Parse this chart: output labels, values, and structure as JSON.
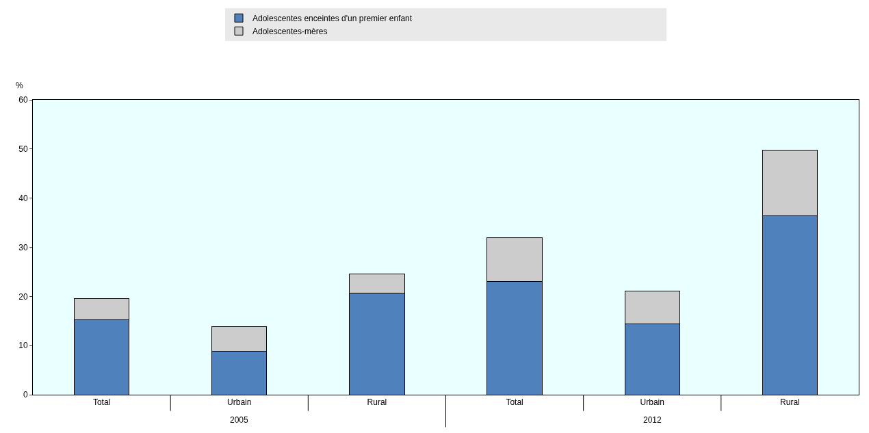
{
  "chart_data": {
    "type": "bar",
    "stacked": true,
    "ylabel": "%",
    "categories": [
      "Total",
      "Urbain",
      "Rural",
      "Total",
      "Urbain",
      "Rural"
    ],
    "series": [
      {
        "name": "Adolescentes enceintes d'un premier enfant",
        "color": "#4f81bd",
        "values": [
          15.2,
          8.8,
          20.7,
          23.1,
          14.4,
          36.4
        ]
      },
      {
        "name": "Adolescentes-mères",
        "color": "#cccccc",
        "values": [
          4.4,
          5.1,
          3.9,
          8.9,
          6.7,
          13.4
        ]
      }
    ],
    "ylim": [
      0,
      60
    ],
    "yticks": [
      0,
      10,
      20,
      30,
      40,
      50,
      60
    ],
    "grid": false,
    "legend": "top",
    "annotations": [
      "2005",
      "2012"
    ]
  }
}
